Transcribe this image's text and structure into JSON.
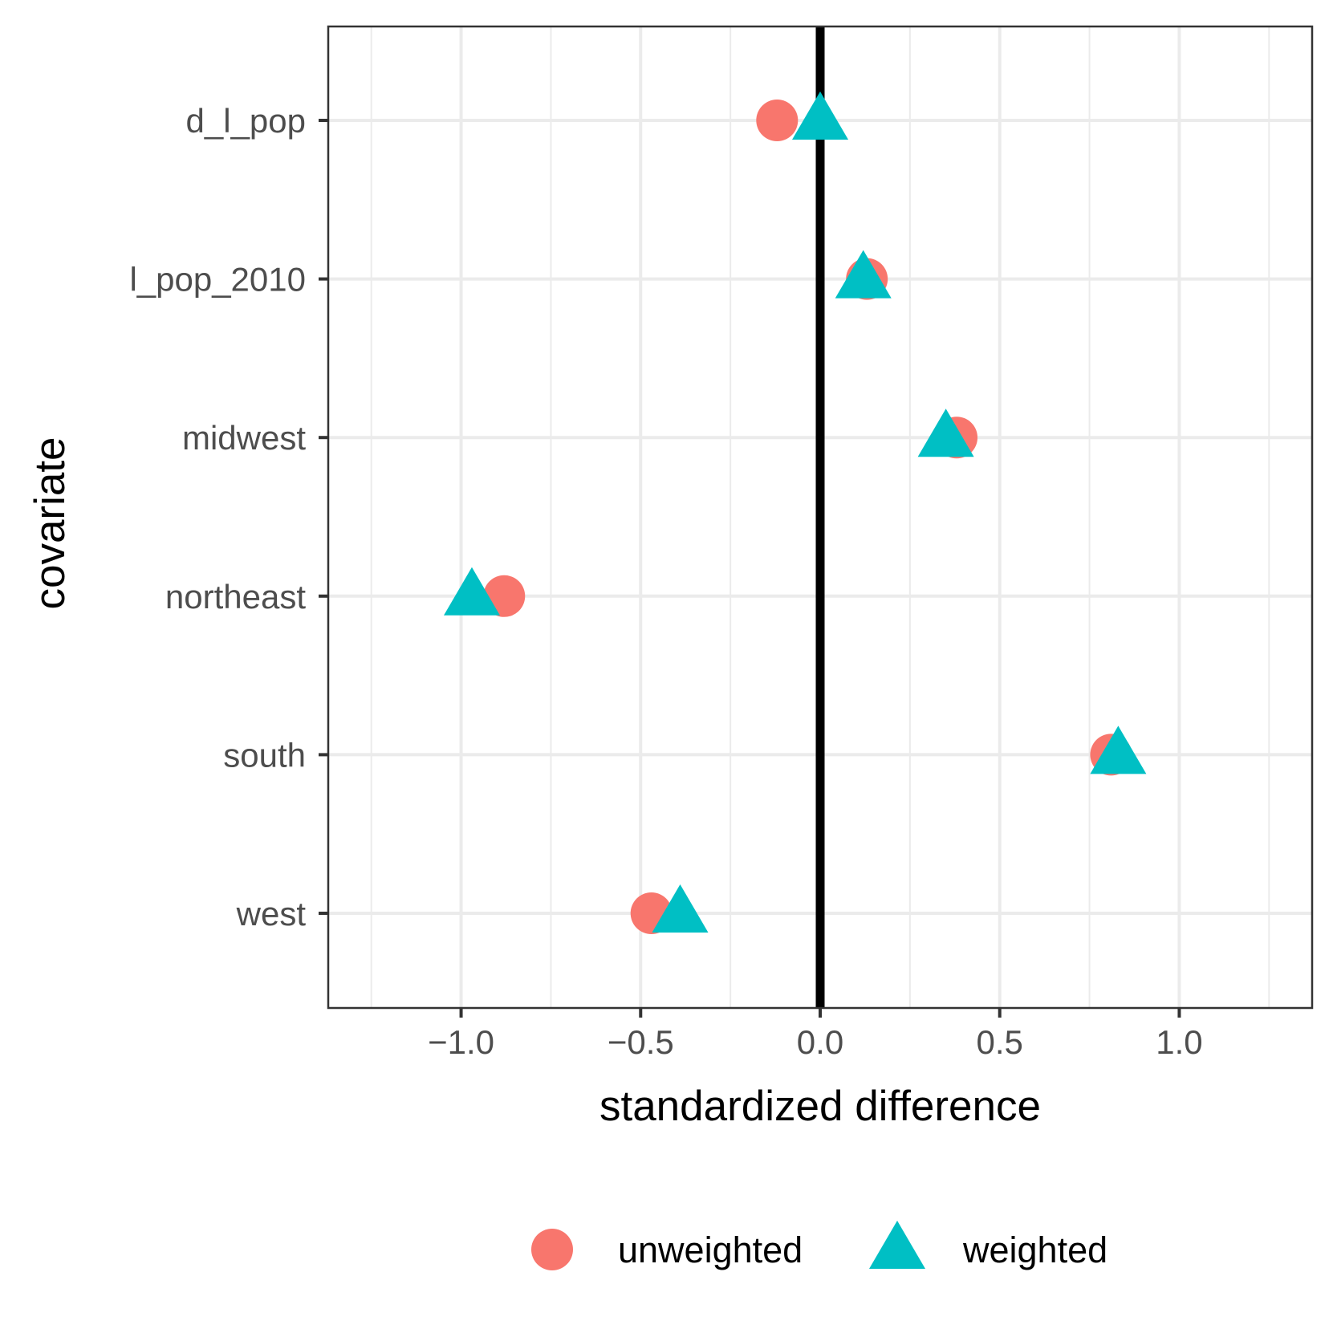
{
  "chart_data": {
    "type": "scatter",
    "title": "",
    "xlabel": "standardized difference",
    "ylabel": "covariate",
    "xlim": [
      -1.37,
      1.37
    ],
    "x_ticks": [
      -1.0,
      -0.5,
      0.0,
      0.5,
      1.0
    ],
    "x_tick_labels": [
      "−1.0",
      "−0.5",
      "0.0",
      "0.5",
      "1.0"
    ],
    "categories": [
      "d_l_pop",
      "l_pop_2010",
      "midwest",
      "northeast",
      "south",
      "west"
    ],
    "reference_line_x": 0,
    "grid": true,
    "legend_position": "bottom",
    "series": [
      {
        "name": "unweighted",
        "shape": "circle",
        "color": "#F8766D",
        "values": [
          -0.12,
          0.13,
          0.38,
          -0.88,
          0.81,
          -0.47
        ]
      },
      {
        "name": "weighted",
        "shape": "triangle",
        "color": "#00BFC4",
        "values": [
          0.0,
          0.12,
          0.35,
          -0.97,
          0.83,
          -0.39
        ]
      }
    ]
  }
}
